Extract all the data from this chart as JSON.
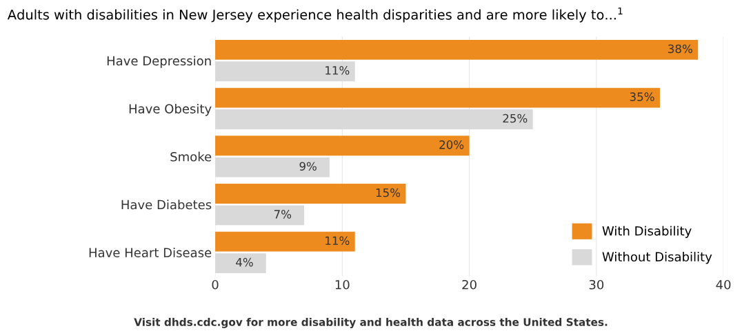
{
  "chart_data": {
    "type": "bar",
    "orientation": "horizontal",
    "title": "Adults with disabilities in New Jersey experience health disparities and are more likely to...$^{1}$",
    "categories": [
      "Have Depression",
      "Have Obesity",
      "Smoke",
      "Have Diabetes",
      "Have Heart Disease"
    ],
    "series": [
      {
        "name": "With Disability",
        "color": "#ee8b1f",
        "values": [
          38,
          35,
          20,
          15,
          11
        ],
        "value_labels": [
          "38%",
          "35%",
          "20%",
          "15%",
          "11%"
        ]
      },
      {
        "name": "Without Disability",
        "color": "#d9d9d9",
        "values": [
          11,
          25,
          9,
          7,
          4
        ],
        "value_labels": [
          "11%",
          "25%",
          "9%",
          "7%",
          "4%"
        ]
      }
    ],
    "xlim": [
      0,
      40
    ],
    "xticks": [
      0,
      10,
      20,
      30,
      40
    ],
    "grid": "x",
    "legend": "bottom right",
    "annotations": [
      "Visit dhds.cdc.gov for more disability and health data across the United States."
    ]
  }
}
